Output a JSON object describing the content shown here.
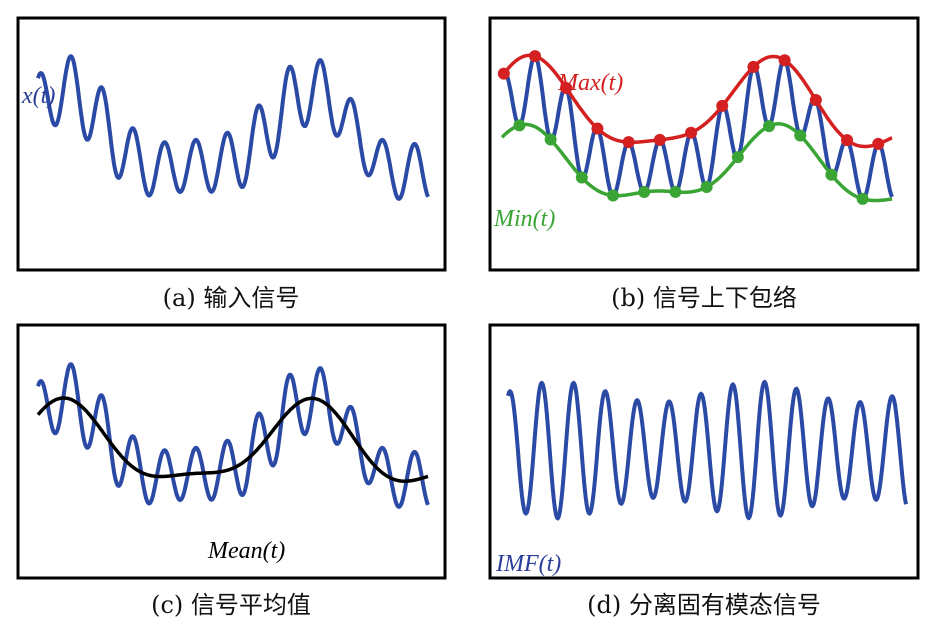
{
  "panels": [
    {
      "caption": "(a) 输入信号",
      "labels": [
        "x(t)"
      ]
    },
    {
      "caption": "(b) 信号上下包络",
      "labels": [
        "Max(t)",
        "Min(t)"
      ]
    },
    {
      "caption": "(c) 信号平均值",
      "labels": [
        "Mean(t)"
      ]
    },
    {
      "caption": "(d) 分离固有模态信号",
      "labels": [
        "IMF(t)"
      ]
    }
  ]
}
